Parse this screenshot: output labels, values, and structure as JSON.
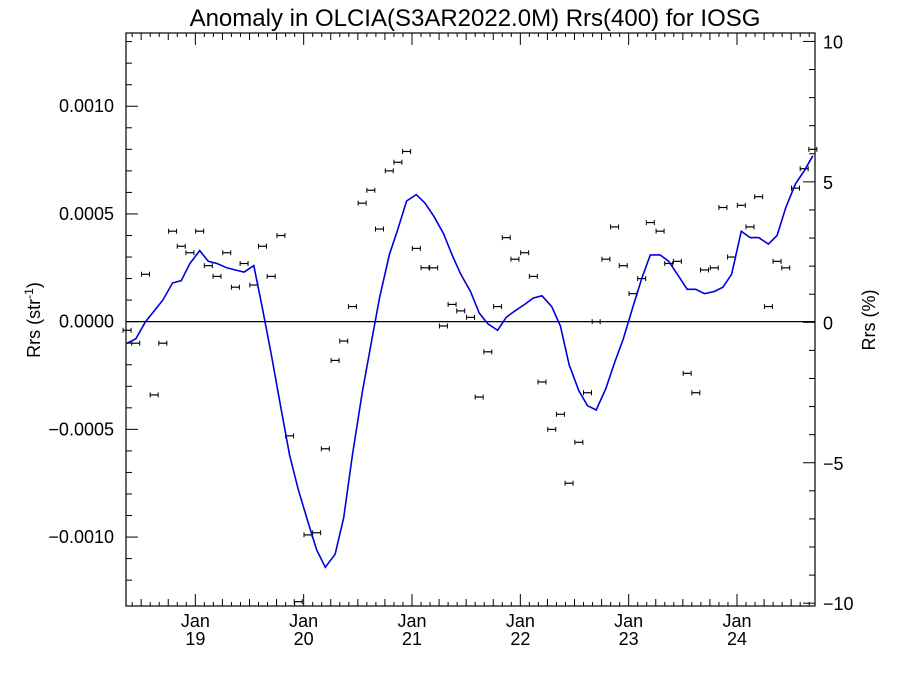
{
  "chart_data": {
    "type": "scatter",
    "title": "Anomaly in OLCIA(S3AR2022.0M) Rrs(400) for IOSG",
    "ylabel_left": "Rrs (str",
    "ylabel_left_sup": "-1",
    "ylabel_left_end": ")",
    "ylabel_right": "Rrs (%)",
    "xlim": [
      2018.36,
      2024.72
    ],
    "ylim": [
      -0.00132,
      0.00134
    ],
    "ylim_right": [
      -10.1,
      10.3
    ],
    "x_ticks": [
      {
        "x": 2019.0,
        "month": "Jan",
        "year": "19"
      },
      {
        "x": 2020.0,
        "month": "Jan",
        "year": "20"
      },
      {
        "x": 2021.0,
        "month": "Jan",
        "year": "21"
      },
      {
        "x": 2022.0,
        "month": "Jan",
        "year": "22"
      },
      {
        "x": 2023.0,
        "month": "Jan",
        "year": "23"
      },
      {
        "x": 2024.0,
        "month": "Jan",
        "year": "24"
      }
    ],
    "y_ticks_left": [
      {
        "v": 0.001,
        "label": "0.0010"
      },
      {
        "v": 0.0005,
        "label": "0.0005"
      },
      {
        "v": 0.0,
        "label": "0.0000"
      },
      {
        "v": -0.0005,
        "label": "−0.0005"
      },
      {
        "v": -0.001,
        "label": "−0.0010"
      }
    ],
    "y_ticks_right": [
      {
        "v": 10,
        "label": "10"
      },
      {
        "v": 5,
        "label": "5"
      },
      {
        "v": 0,
        "label": "0"
      },
      {
        "v": -5,
        "label": "−5"
      },
      {
        "v": -10,
        "label": "−10"
      }
    ],
    "zero_line": 0,
    "series": [
      {
        "kind": "points_with_errorbars",
        "color": "#000000",
        "x": [
          2018.37,
          2018.45,
          2018.54,
          2018.62,
          2018.7,
          2018.79,
          2018.87,
          2018.95,
          2019.04,
          2019.12,
          2019.2,
          2019.29,
          2019.37,
          2019.45,
          2019.54,
          2019.62,
          2019.7,
          2019.79,
          2019.87,
          2019.95,
          2020.04,
          2020.12,
          2020.2,
          2020.29,
          2020.37,
          2020.45,
          2020.54,
          2020.62,
          2020.7,
          2020.79,
          2020.87,
          2020.95,
          2021.04,
          2021.12,
          2021.2,
          2021.29,
          2021.37,
          2021.45,
          2021.54,
          2021.62,
          2021.7,
          2021.79,
          2021.87,
          2021.95,
          2022.04,
          2022.12,
          2022.2,
          2022.29,
          2022.37,
          2022.45,
          2022.54,
          2022.62,
          2022.7,
          2022.79,
          2022.87,
          2022.95,
          2023.04,
          2023.12,
          2023.2,
          2023.29,
          2023.37,
          2023.45,
          2023.54,
          2023.62,
          2023.7,
          2023.79,
          2023.87,
          2023.95,
          2024.04,
          2024.12,
          2024.2,
          2024.29,
          2024.37,
          2024.45,
          2024.54,
          2024.62,
          2024.7
        ],
        "y": [
          -4e-05,
          -0.0001,
          0.00022,
          -0.00034,
          -0.0001,
          0.00042,
          0.00035,
          0.00032,
          0.00042,
          0.00026,
          0.00021,
          0.00032,
          0.00016,
          0.00027,
          0.00017,
          0.00035,
          0.00021,
          0.0004,
          -0.00053,
          -0.0013,
          -0.00099,
          -0.00098,
          -0.00059,
          -0.00018,
          -9e-05,
          7e-05,
          0.00055,
          0.00061,
          0.00043,
          0.0007,
          0.00074,
          0.00079,
          0.00034,
          0.00025,
          0.00025,
          -2e-05,
          8e-05,
          5e-05,
          2e-05,
          -0.00035,
          -0.00014,
          7e-05,
          0.00039,
          0.00029,
          0.00032,
          0.00021,
          -0.00028,
          -0.0005,
          -0.00043,
          -0.00075,
          -0.00056,
          -0.00033,
          0.0,
          0.00029,
          0.00044,
          0.00026,
          0.00013,
          0.0002,
          0.00046,
          0.00042,
          0.00027,
          0.00028,
          -0.00024,
          -0.00033,
          0.00024,
          0.00025,
          0.00053,
          0.0003,
          0.00054,
          0.00044,
          0.00058,
          7e-05,
          0.00028,
          0.00025,
          0.00062,
          0.00071,
          0.0008
        ],
        "err": 6e-06
      },
      {
        "kind": "line",
        "color": "#0000dd",
        "x": [
          2018.37,
          2018.45,
          2018.54,
          2018.62,
          2018.7,
          2018.79,
          2018.87,
          2018.95,
          2019.04,
          2019.12,
          2019.2,
          2019.29,
          2019.37,
          2019.45,
          2019.54,
          2019.62,
          2019.7,
          2019.79,
          2019.87,
          2019.95,
          2020.04,
          2020.12,
          2020.2,
          2020.29,
          2020.37,
          2020.45,
          2020.54,
          2020.62,
          2020.7,
          2020.79,
          2020.87,
          2020.95,
          2021.04,
          2021.12,
          2021.2,
          2021.29,
          2021.37,
          2021.45,
          2021.54,
          2021.62,
          2021.7,
          2021.79,
          2021.87,
          2021.95,
          2022.04,
          2022.12,
          2022.2,
          2022.29,
          2022.37,
          2022.45,
          2022.54,
          2022.62,
          2022.7,
          2022.79,
          2022.87,
          2022.95,
          2023.04,
          2023.12,
          2023.2,
          2023.29,
          2023.37,
          2023.45,
          2023.54,
          2023.62,
          2023.7,
          2023.79,
          2023.87,
          2023.95,
          2024.04,
          2024.12,
          2024.2,
          2024.29,
          2024.37,
          2024.45,
          2024.54,
          2024.62,
          2024.7
        ],
        "y": [
          -0.0001,
          -8e-05,
          0.0,
          5e-05,
          0.0001,
          0.00018,
          0.00019,
          0.00027,
          0.00033,
          0.00028,
          0.00027,
          0.00025,
          0.00024,
          0.00023,
          0.00026,
          6e-05,
          -0.00015,
          -0.0004,
          -0.00062,
          -0.00078,
          -0.00093,
          -0.00106,
          -0.00114,
          -0.00108,
          -0.00091,
          -0.00062,
          -0.00033,
          -0.00011,
          0.00011,
          0.00031,
          0.00043,
          0.00056,
          0.00059,
          0.00055,
          0.00049,
          0.00041,
          0.00031,
          0.00022,
          0.00014,
          4e-05,
          -1e-05,
          -4e-05,
          2e-05,
          5e-05,
          8e-05,
          0.00011,
          0.00012,
          7e-05,
          -2e-05,
          -0.0002,
          -0.00032,
          -0.00039,
          -0.00041,
          -0.00031,
          -0.00019,
          -8e-05,
          7e-05,
          0.0002,
          0.00031,
          0.00031,
          0.00028,
          0.00022,
          0.00015,
          0.00015,
          0.00013,
          0.00014,
          0.00016,
          0.00022,
          0.00042,
          0.00039,
          0.00039,
          0.00036,
          0.0004,
          0.00053,
          0.00064,
          0.0007,
          0.00077
        ]
      }
    ]
  }
}
